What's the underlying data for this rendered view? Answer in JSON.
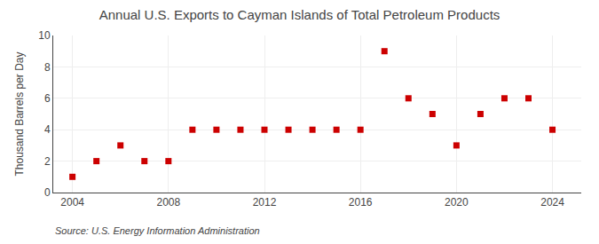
{
  "chart_data": {
    "type": "scatter",
    "title": "Annual U.S. Exports to Cayman Islands of Total Petroleum Products",
    "ylabel": "Thousand Barrels per Day",
    "annotations": [
      "Source: U.S. Energy Information Administration"
    ],
    "x": [
      2004,
      2005,
      2006,
      2007,
      2008,
      2009,
      2010,
      2011,
      2012,
      2013,
      2014,
      2015,
      2016,
      2017,
      2018,
      2019,
      2020,
      2021,
      2022,
      2023,
      2024
    ],
    "values": [
      1,
      2,
      3,
      2,
      2,
      4,
      4,
      4,
      4,
      4,
      4,
      4,
      4,
      9,
      6,
      5,
      3,
      5,
      6,
      6,
      4
    ],
    "color": "#CC0000",
    "marker": "square",
    "xlim": [
      2003.2,
      2025.2
    ],
    "ylim": [
      0,
      10
    ],
    "xticks": [
      2004,
      2008,
      2012,
      2016,
      2020,
      2024
    ],
    "yticks": [
      0,
      2,
      4,
      6,
      8,
      10
    ],
    "grid": true
  }
}
